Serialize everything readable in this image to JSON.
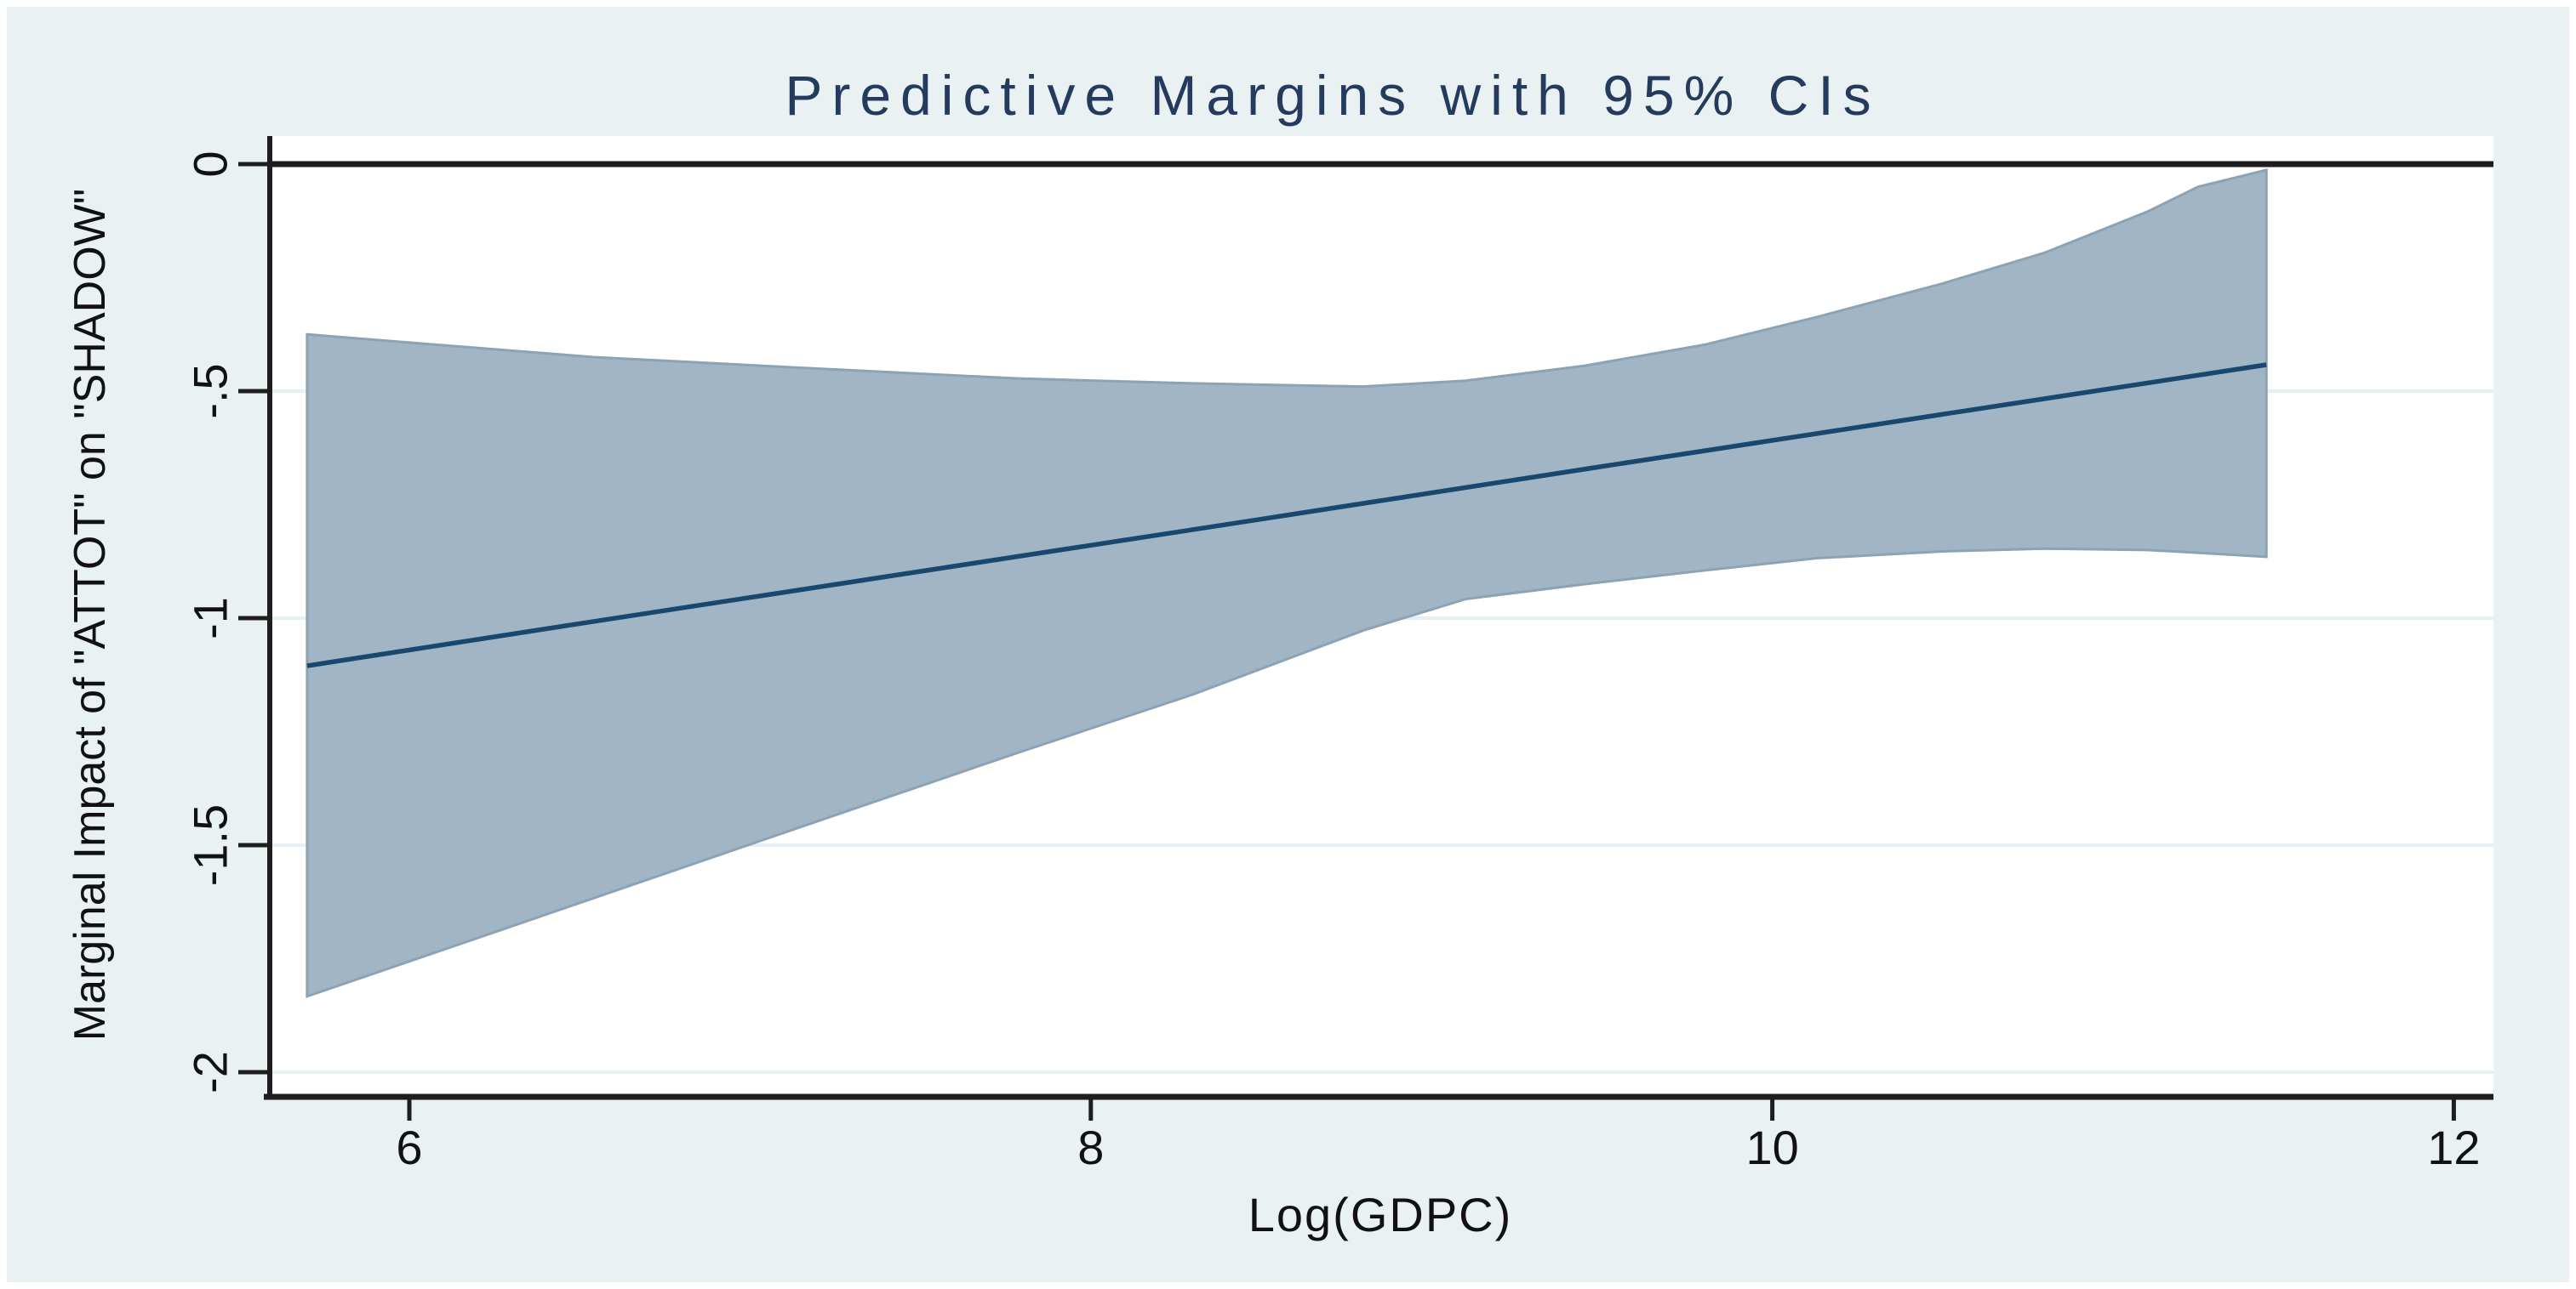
{
  "chart_data": {
    "type": "area",
    "title": "Predictive Margins with 95% CIs",
    "xlabel": "Log(GDPC)",
    "ylabel": "Marginal Impact of \"ATTOT\" on \"SHADOW\"",
    "x_ticks": [
      6,
      8,
      10,
      12
    ],
    "x_tick_labels": [
      "6",
      "8",
      "10",
      "12"
    ],
    "y_ticks": [
      0,
      -0.5,
      -1,
      -1.5,
      -2
    ],
    "y_tick_labels": [
      "0",
      "-.5",
      "-1",
      "-1.5",
      "-2"
    ],
    "xlim": [
      5.59,
      12.12
    ],
    "ylim": [
      -2.05,
      0.06
    ],
    "grid": true,
    "legend": "none",
    "reference_line_y": 0,
    "series": [
      {
        "name": "95% confidence interval",
        "type": "band",
        "x": [
          5.7,
          6.0,
          6.54,
          7.16,
          7.78,
          8.3,
          8.8,
          9.1,
          9.45,
          9.8,
          10.13,
          10.5,
          10.8,
          11.1,
          11.25,
          11.45
        ],
        "upper": [
          -0.375,
          -0.393,
          -0.425,
          -0.449,
          -0.472,
          -0.483,
          -0.49,
          -0.477,
          -0.444,
          -0.398,
          -0.337,
          -0.263,
          -0.195,
          -0.105,
          -0.05,
          -0.013
        ],
        "lower": [
          -1.833,
          -1.756,
          -1.617,
          -1.457,
          -1.298,
          -1.168,
          -1.027,
          -0.958,
          -0.925,
          -0.895,
          -0.868,
          -0.853,
          -0.847,
          -0.85,
          -0.856,
          -0.865
        ]
      },
      {
        "name": "Predictive margin",
        "type": "line",
        "x": [
          5.7,
          6.5,
          7.5,
          8.5,
          9.5,
          10.5,
          11.45
        ],
        "y": [
          -1.105,
          -1.012,
          -0.897,
          -0.782,
          -0.666,
          -0.551,
          -0.442
        ]
      }
    ],
    "colors": {
      "background": "#e9f1f3",
      "plot_background": "#ffffff",
      "grid": "#e6eff1",
      "axis": "#1e1e1e",
      "band_fill": "#a1b5c5",
      "band_stroke": "#8ba3b4",
      "line": "#19476f",
      "title_color": "#243b5e",
      "tick_text": "#111111"
    }
  }
}
